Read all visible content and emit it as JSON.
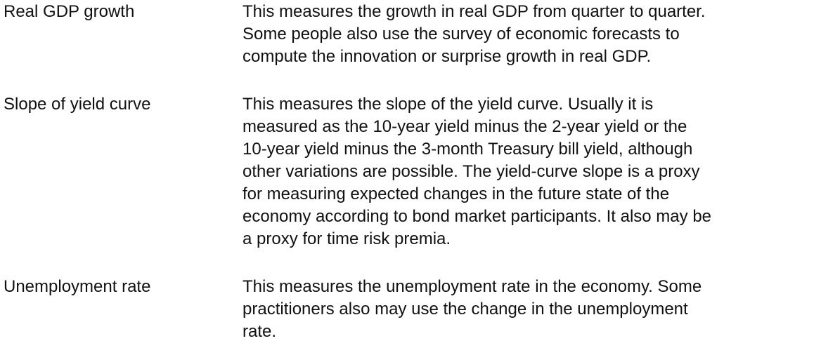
{
  "rows": [
    {
      "term": "Real GDP growth",
      "definition_lines": [
        "This measures the growth in real GDP from quarter to quarter.",
        "Some people also use the survey of economic forecasts to",
        "compute the innovation or surprise growth in real GDP."
      ]
    },
    {
      "term": "Slope of yield curve",
      "definition_lines": [
        "This measures the slope of the yield curve. Usually it is",
        "measured as the 10-year yield minus the 2-year yield or the",
        "10-year yield minus the 3-month Treasury bill yield, although",
        "other variations are possible. The yield-curve slope is a proxy",
        "for measuring expected changes in the future state of the",
        "economy according to bond market participants. It also may be",
        "a proxy for time risk premia."
      ]
    },
    {
      "term": "Unemployment rate",
      "definition_lines": [
        "This measures the unemployment rate in the economy. Some",
        "practitioners also may use the change in the unemployment",
        "rate."
      ]
    }
  ]
}
